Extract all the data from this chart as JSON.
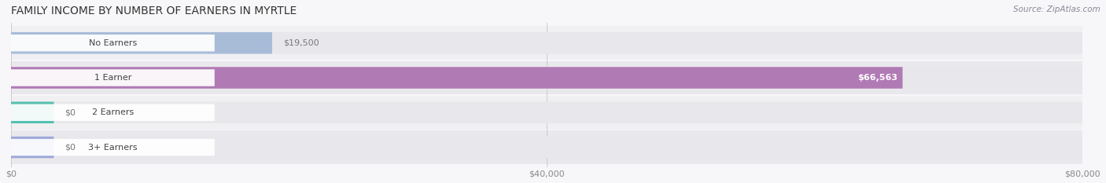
{
  "title": "FAMILY INCOME BY NUMBER OF EARNERS IN MYRTLE",
  "source": "Source: ZipAtlas.com",
  "categories": [
    "No Earners",
    "1 Earner",
    "2 Earners",
    "3+ Earners"
  ],
  "values": [
    19500,
    66563,
    0,
    0
  ],
  "bar_colors": [
    "#a8bcd8",
    "#b07ab5",
    "#55c0b0",
    "#9da8d8"
  ],
  "bar_bg_color": "#e8e8ec",
  "row_bg_even": "#f2f2f4",
  "row_bg_odd": "#ebebee",
  "xmax": 80000,
  "xticks": [
    0,
    40000,
    80000
  ],
  "xticklabels": [
    "$0",
    "$40,000",
    "$80,000"
  ],
  "value_labels": [
    "$19,500",
    "$66,563",
    "$0",
    "$0"
  ],
  "value_label_inside": [
    false,
    true,
    false,
    false
  ],
  "figsize": [
    14.06,
    2.33
  ],
  "dpi": 100
}
